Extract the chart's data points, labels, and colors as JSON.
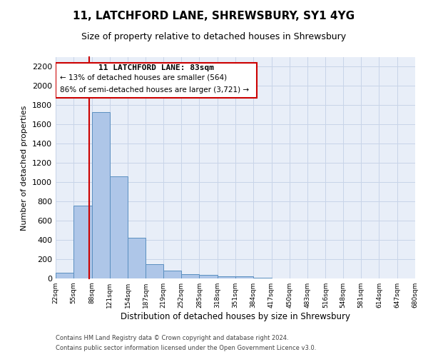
{
  "title": "11, LATCHFORD LANE, SHREWSBURY, SY1 4YG",
  "subtitle": "Size of property relative to detached houses in Shrewsbury",
  "xlabel": "Distribution of detached houses by size in Shrewsbury",
  "ylabel": "Number of detached properties",
  "footnote1": "Contains HM Land Registry data © Crown copyright and database right 2024.",
  "footnote2": "Contains public sector information licensed under the Open Government Licence v3.0.",
  "property_size": 83,
  "annotation_line1": "11 LATCHFORD LANE: 83sqm",
  "annotation_line2": "← 13% of detached houses are smaller (564)",
  "annotation_line3": "86% of semi-detached houses are larger (3,721) →",
  "bin_edges": [
    22,
    55,
    88,
    121,
    154,
    187,
    219,
    252,
    285,
    318,
    351,
    384,
    417,
    450,
    483,
    516,
    548,
    581,
    614,
    647,
    680
  ],
  "bin_heights": [
    60,
    760,
    1730,
    1060,
    420,
    150,
    85,
    45,
    35,
    25,
    20,
    5,
    2,
    1,
    1,
    0,
    0,
    0,
    0,
    0
  ],
  "bar_color": "#aec6e8",
  "bar_edge_color": "#5a8fc0",
  "red_line_color": "#cc0000",
  "annotation_box_color": "#cc0000",
  "grid_color": "#c8d4e8",
  "background_color": "#e8eef8",
  "ylim": [
    0,
    2300
  ],
  "yticks": [
    0,
    200,
    400,
    600,
    800,
    1000,
    1200,
    1400,
    1600,
    1800,
    2000,
    2200
  ],
  "title_fontsize": 11,
  "subtitle_fontsize": 9,
  "ylabel_fontsize": 8,
  "xlabel_fontsize": 8.5,
  "ytick_fontsize": 8,
  "xtick_fontsize": 6.5,
  "footnote_fontsize": 6
}
